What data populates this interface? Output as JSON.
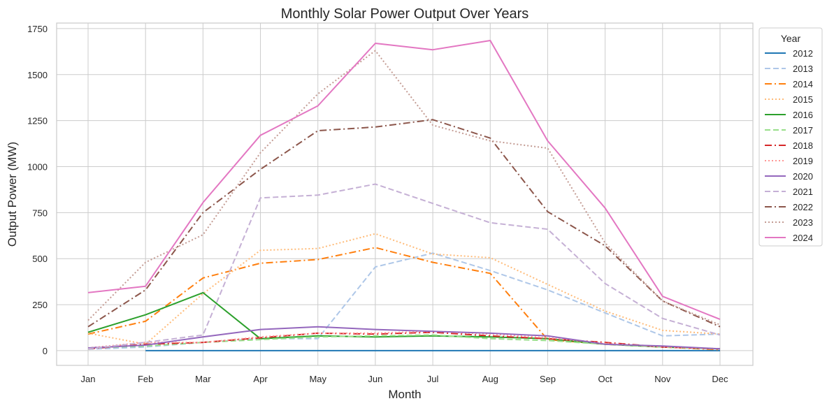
{
  "chart_data": {
    "type": "line",
    "title": "Monthly Solar Power Output Over Years",
    "xlabel": "Month",
    "ylabel": "Output Power (MW)",
    "categories": [
      "Jan",
      "Feb",
      "Mar",
      "Apr",
      "May",
      "Jun",
      "Jul",
      "Aug",
      "Sep",
      "Oct",
      "Nov",
      "Dec"
    ],
    "ylim": [
      -80,
      1780
    ],
    "yticks": [
      0,
      250,
      500,
      750,
      1000,
      1250,
      1500,
      1750
    ],
    "grid": true,
    "legend": {
      "title": "Year",
      "placement": "upper-right-outside"
    },
    "series": [
      {
        "name": "2012",
        "color": "#1f77b4",
        "dash": "solid",
        "values": [
          null,
          0,
          0,
          0,
          0,
          0,
          0,
          0,
          0,
          0,
          0,
          0
        ]
      },
      {
        "name": "2013",
        "color": "#aec7e8",
        "dash": "dashed",
        "values": [
          8,
          20,
          45,
          65,
          65,
          455,
          530,
          435,
          330,
          205,
          80,
          90
        ]
      },
      {
        "name": "2014",
        "color": "#ff7f0e",
        "dash": "dashdot",
        "values": [
          90,
          160,
          395,
          475,
          495,
          560,
          480,
          420,
          60,
          35,
          20,
          5
        ]
      },
      {
        "name": "2015",
        "color": "#ffbb78",
        "dash": "dotted",
        "values": [
          95,
          35,
          310,
          545,
          555,
          635,
          525,
          505,
          360,
          215,
          110,
          90
        ]
      },
      {
        "name": "2016",
        "color": "#2ca02c",
        "dash": "solid",
        "values": [
          100,
          195,
          315,
          65,
          80,
          75,
          80,
          75,
          65,
          35,
          20,
          10
        ]
      },
      {
        "name": "2017",
        "color": "#98df8a",
        "dash": "dashed",
        "values": [
          15,
          25,
          45,
          60,
          75,
          80,
          85,
          65,
          55,
          35,
          20,
          10
        ]
      },
      {
        "name": "2018",
        "color": "#d62728",
        "dash": "dashdot",
        "values": [
          10,
          35,
          45,
          70,
          95,
          90,
          100,
          80,
          65,
          45,
          20,
          10
        ]
      },
      {
        "name": "2019",
        "color": "#ff9896",
        "dash": "dotted",
        "values": [
          15,
          45,
          45,
          75,
          95,
          95,
          105,
          90,
          70,
          40,
          20,
          10
        ]
      },
      {
        "name": "2020",
        "color": "#9467bd",
        "dash": "solid",
        "values": [
          15,
          30,
          75,
          115,
          130,
          115,
          105,
          95,
          80,
          35,
          25,
          10
        ]
      },
      {
        "name": "2021",
        "color": "#c5b0d5",
        "dash": "dashed",
        "values": [
          10,
          45,
          85,
          830,
          845,
          905,
          800,
          695,
          660,
          365,
          175,
          85
        ]
      },
      {
        "name": "2022",
        "color": "#8c564b",
        "dash": "dashdot",
        "values": [
          130,
          330,
          750,
          985,
          1195,
          1215,
          1255,
          1155,
          755,
          570,
          270,
          130
        ]
      },
      {
        "name": "2023",
        "color": "#c49c94",
        "dash": "dotted",
        "values": [
          165,
          480,
          630,
          1075,
          1395,
          1630,
          1225,
          1140,
          1100,
          585,
          270,
          140
        ]
      },
      {
        "name": "2024",
        "color": "#e377c2",
        "dash": "solid",
        "values": [
          315,
          350,
          805,
          1170,
          1330,
          1670,
          1635,
          1685,
          1140,
          775,
          295,
          170
        ]
      }
    ]
  }
}
